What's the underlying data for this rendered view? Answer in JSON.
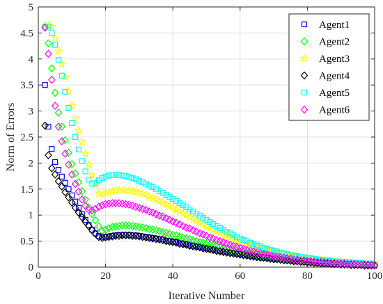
{
  "chart_data": {
    "type": "scatter",
    "title": "",
    "xlabel": "Iterative Number",
    "ylabel": "Norm of Errors",
    "xlim": [
      0,
      100
    ],
    "ylim": [
      0,
      5
    ],
    "xticks": [
      "0",
      "20",
      "40",
      "60",
      "80",
      "100"
    ],
    "yticks": [
      "0",
      "0.5",
      "1",
      "1.5",
      "2",
      "2.5",
      "3",
      "3.5",
      "4",
      "4.5",
      "5"
    ],
    "grid": true,
    "legend_position": "top-right",
    "series": [
      {
        "name": "Agent1",
        "marker": "square",
        "color": "#0000ff",
        "x": [
          2,
          3,
          4,
          5,
          6,
          7,
          8,
          9,
          10,
          11,
          12,
          13,
          14,
          15,
          16,
          17,
          18,
          19,
          20,
          21,
          22,
          23,
          24,
          25,
          26,
          27,
          28,
          29,
          30,
          31,
          32,
          33,
          34,
          35,
          36,
          37,
          38,
          39,
          40,
          41,
          42,
          43,
          44,
          45,
          46,
          47,
          48,
          49,
          50,
          51,
          52,
          53,
          54,
          55,
          56,
          57,
          58,
          59,
          60,
          61,
          62,
          63,
          64,
          65,
          66,
          67,
          68,
          69,
          70,
          71,
          72,
          73,
          74,
          75,
          76,
          77,
          78,
          79,
          80,
          81,
          82,
          83,
          84,
          85,
          86,
          87,
          88,
          89,
          90,
          91,
          92,
          93,
          94,
          95,
          96,
          97,
          98,
          99,
          100
        ],
        "y": [
          3.5,
          2.7,
          2.27,
          2.02,
          1.87,
          1.74,
          1.62,
          1.5,
          1.38,
          1.26,
          1.14,
          1.02,
          0.91,
          0.81,
          0.72,
          0.65,
          0.6,
          0.58,
          0.58,
          0.59,
          0.6,
          0.61,
          0.62,
          0.62,
          0.62,
          0.62,
          0.61,
          0.61,
          0.6,
          0.59,
          0.58,
          0.57,
          0.56,
          0.55,
          0.54,
          0.53,
          0.51,
          0.5,
          0.49,
          0.48,
          0.46,
          0.45,
          0.44,
          0.42,
          0.41,
          0.4,
          0.39,
          0.37,
          0.36,
          0.35,
          0.34,
          0.32,
          0.31,
          0.3,
          0.29,
          0.28,
          0.27,
          0.26,
          0.25,
          0.24,
          0.23,
          0.22,
          0.21,
          0.2,
          0.19,
          0.18,
          0.18,
          0.17,
          0.16,
          0.15,
          0.15,
          0.14,
          0.13,
          0.13,
          0.12,
          0.11,
          0.11,
          0.1,
          0.1,
          0.09,
          0.09,
          0.08,
          0.08,
          0.07,
          0.07,
          0.07,
          0.06,
          0.06,
          0.06,
          0.05,
          0.05,
          0.05,
          0.05,
          0.04,
          0.04,
          0.04,
          0.04,
          0.03,
          0.03
        ]
      },
      {
        "name": "Agent2",
        "marker": "diamond",
        "color": "#00ff00",
        "x": [
          2,
          3,
          4,
          5,
          6,
          7,
          8,
          9,
          10,
          11,
          12,
          13,
          14,
          15,
          16,
          17,
          18,
          19,
          20,
          21,
          22,
          23,
          24,
          25,
          26,
          27,
          28,
          29,
          30,
          31,
          32,
          33,
          34,
          35,
          36,
          37,
          38,
          39,
          40,
          41,
          42,
          43,
          44,
          45,
          46,
          47,
          48,
          49,
          50,
          51,
          52,
          53,
          54,
          55,
          56,
          57,
          58,
          59,
          60,
          61,
          62,
          63,
          64,
          65,
          66,
          67,
          68,
          69,
          70,
          71,
          72,
          73,
          74,
          75,
          76,
          77,
          78,
          79,
          80,
          81,
          82,
          83,
          84,
          85,
          86,
          87,
          88,
          89,
          90,
          91,
          92,
          93,
          94,
          95,
          96,
          97,
          98,
          99,
          100
        ],
        "y": [
          4.62,
          4.3,
          3.82,
          3.35,
          2.97,
          2.7,
          2.44,
          2.2,
          1.98,
          1.8,
          1.63,
          1.46,
          1.3,
          1.15,
          1.02,
          0.9,
          0.78,
          0.7,
          0.72,
          0.75,
          0.77,
          0.78,
          0.79,
          0.8,
          0.8,
          0.8,
          0.79,
          0.78,
          0.77,
          0.76,
          0.75,
          0.73,
          0.72,
          0.71,
          0.69,
          0.67,
          0.66,
          0.64,
          0.62,
          0.61,
          0.59,
          0.57,
          0.55,
          0.54,
          0.52,
          0.5,
          0.48,
          0.47,
          0.45,
          0.43,
          0.42,
          0.4,
          0.39,
          0.37,
          0.36,
          0.34,
          0.33,
          0.31,
          0.3,
          0.29,
          0.27,
          0.26,
          0.25,
          0.24,
          0.23,
          0.22,
          0.21,
          0.2,
          0.19,
          0.18,
          0.17,
          0.16,
          0.15,
          0.15,
          0.14,
          0.13,
          0.12,
          0.12,
          0.11,
          0.11,
          0.1,
          0.1,
          0.09,
          0.09,
          0.08,
          0.08,
          0.07,
          0.07,
          0.07,
          0.06,
          0.06,
          0.06,
          0.05,
          0.05,
          0.05,
          0.05,
          0.04,
          0.04,
          0.04
        ]
      },
      {
        "name": "Agent3",
        "marker": "star",
        "color": "#ffff00",
        "x": [
          2,
          3,
          4,
          5,
          6,
          7,
          8,
          9,
          10,
          11,
          12,
          13,
          14,
          15,
          16,
          17,
          18,
          19,
          20,
          21,
          22,
          23,
          24,
          25,
          26,
          27,
          28,
          29,
          30,
          31,
          32,
          33,
          34,
          35,
          36,
          37,
          38,
          39,
          40,
          41,
          42,
          43,
          44,
          45,
          46,
          47,
          48,
          49,
          50,
          51,
          52,
          53,
          54,
          55,
          56,
          57,
          58,
          59,
          60,
          61,
          62,
          63,
          64,
          65,
          66,
          67,
          68,
          69,
          70,
          71,
          72,
          73,
          74,
          75,
          76,
          77,
          78,
          79,
          80,
          81,
          82,
          83,
          84,
          85,
          86,
          87,
          88,
          89,
          90,
          91,
          92,
          93,
          94,
          95,
          96,
          97,
          98,
          99,
          100
        ],
        "y": [
          4.65,
          4.65,
          4.62,
          4.4,
          4.15,
          3.9,
          3.65,
          3.38,
          3.1,
          2.85,
          2.62,
          2.4,
          2.18,
          1.97,
          1.77,
          1.58,
          1.42,
          1.4,
          1.42,
          1.44,
          1.46,
          1.47,
          1.48,
          1.48,
          1.48,
          1.47,
          1.46,
          1.45,
          1.43,
          1.41,
          1.39,
          1.36,
          1.33,
          1.3,
          1.27,
          1.24,
          1.21,
          1.17,
          1.14,
          1.1,
          1.07,
          1.03,
          1.0,
          0.96,
          0.92,
          0.89,
          0.85,
          0.82,
          0.78,
          0.75,
          0.72,
          0.69,
          0.66,
          0.63,
          0.6,
          0.57,
          0.54,
          0.51,
          0.49,
          0.46,
          0.44,
          0.42,
          0.4,
          0.38,
          0.36,
          0.34,
          0.32,
          0.3,
          0.29,
          0.27,
          0.26,
          0.24,
          0.23,
          0.22,
          0.21,
          0.2,
          0.19,
          0.18,
          0.17,
          0.16,
          0.15,
          0.14,
          0.14,
          0.13,
          0.12,
          0.12,
          0.11,
          0.1,
          0.1,
          0.09,
          0.09,
          0.09,
          0.08,
          0.08,
          0.07,
          0.07,
          0.07,
          0.06,
          0.06
        ]
      },
      {
        "name": "Agent4",
        "marker": "diamond",
        "color": "#000000",
        "x": [
          2,
          3,
          4,
          5,
          6,
          7,
          8,
          9,
          10,
          11,
          12,
          13,
          14,
          15,
          16,
          17,
          18,
          19,
          20,
          21,
          22,
          23,
          24,
          25,
          26,
          27,
          28,
          29,
          30,
          31,
          32,
          33,
          34,
          35,
          36,
          37,
          38,
          39,
          40,
          41,
          42,
          43,
          44,
          45,
          46,
          47,
          48,
          49,
          50,
          51,
          52,
          53,
          54,
          55,
          56,
          57,
          58,
          59,
          60,
          61,
          62,
          63,
          64,
          65,
          66,
          67,
          68,
          69,
          70,
          71,
          72,
          73,
          74,
          75,
          76,
          77,
          78,
          79,
          80,
          81,
          82,
          83,
          84,
          85,
          86,
          87,
          88,
          89,
          90,
          91,
          92,
          93,
          94,
          95,
          96,
          97,
          98,
          99,
          100
        ],
        "y": [
          2.72,
          2.15,
          1.9,
          1.78,
          1.65,
          1.55,
          1.44,
          1.34,
          1.24,
          1.14,
          1.05,
          0.96,
          0.87,
          0.79,
          0.71,
          0.64,
          0.58,
          0.56,
          0.57,
          0.58,
          0.59,
          0.6,
          0.6,
          0.61,
          0.61,
          0.61,
          0.6,
          0.6,
          0.59,
          0.58,
          0.57,
          0.56,
          0.55,
          0.54,
          0.53,
          0.52,
          0.5,
          0.49,
          0.48,
          0.47,
          0.45,
          0.44,
          0.43,
          0.41,
          0.4,
          0.39,
          0.38,
          0.36,
          0.35,
          0.34,
          0.33,
          0.31,
          0.3,
          0.29,
          0.28,
          0.27,
          0.26,
          0.25,
          0.24,
          0.23,
          0.22,
          0.21,
          0.2,
          0.19,
          0.18,
          0.18,
          0.17,
          0.16,
          0.15,
          0.15,
          0.14,
          0.13,
          0.13,
          0.12,
          0.11,
          0.11,
          0.1,
          0.1,
          0.09,
          0.09,
          0.08,
          0.08,
          0.07,
          0.07,
          0.07,
          0.06,
          0.06,
          0.06,
          0.05,
          0.05,
          0.05,
          0.04,
          0.04,
          0.04,
          0.04,
          0.03,
          0.03,
          0.03,
          0.03
        ]
      },
      {
        "name": "Agent5",
        "marker": "square",
        "color": "#00ffff",
        "x": [
          2,
          3,
          4,
          5,
          6,
          7,
          8,
          9,
          10,
          11,
          12,
          13,
          14,
          15,
          16,
          17,
          18,
          19,
          20,
          21,
          22,
          23,
          24,
          25,
          26,
          27,
          28,
          29,
          30,
          31,
          32,
          33,
          34,
          35,
          36,
          37,
          38,
          39,
          40,
          41,
          42,
          43,
          44,
          45,
          46,
          47,
          48,
          49,
          50,
          51,
          52,
          53,
          54,
          55,
          56,
          57,
          58,
          59,
          60,
          61,
          62,
          63,
          64,
          65,
          66,
          67,
          68,
          69,
          70,
          71,
          72,
          73,
          74,
          75,
          76,
          77,
          78,
          79,
          80,
          81,
          82,
          83,
          84,
          85,
          86,
          87,
          88,
          89,
          90,
          91,
          92,
          93,
          94,
          95,
          96,
          97,
          98,
          99,
          100
        ],
        "y": [
          4.62,
          4.62,
          4.5,
          4.27,
          3.98,
          3.68,
          3.37,
          3.06,
          2.77,
          2.5,
          2.26,
          2.04,
          1.84,
          1.68,
          1.6,
          1.62,
          1.67,
          1.71,
          1.74,
          1.76,
          1.77,
          1.77,
          1.77,
          1.76,
          1.75,
          1.73,
          1.71,
          1.69,
          1.66,
          1.63,
          1.6,
          1.57,
          1.54,
          1.5,
          1.46,
          1.43,
          1.39,
          1.35,
          1.31,
          1.27,
          1.23,
          1.19,
          1.15,
          1.11,
          1.07,
          1.03,
          0.99,
          0.95,
          0.91,
          0.87,
          0.83,
          0.79,
          0.75,
          0.72,
          0.68,
          0.65,
          0.62,
          0.58,
          0.55,
          0.52,
          0.5,
          0.47,
          0.44,
          0.42,
          0.4,
          0.37,
          0.35,
          0.33,
          0.31,
          0.3,
          0.28,
          0.26,
          0.25,
          0.23,
          0.22,
          0.21,
          0.2,
          0.19,
          0.18,
          0.17,
          0.16,
          0.15,
          0.14,
          0.13,
          0.13,
          0.12,
          0.11,
          0.11,
          0.1,
          0.1,
          0.09,
          0.09,
          0.08,
          0.08,
          0.08,
          0.07,
          0.07,
          0.07,
          0.06
        ]
      },
      {
        "name": "Agent6",
        "marker": "diamond",
        "color": "#ff00ff",
        "x": [
          2,
          3,
          4,
          5,
          6,
          7,
          8,
          9,
          10,
          11,
          12,
          13,
          14,
          15,
          16,
          17,
          18,
          19,
          20,
          21,
          22,
          23,
          24,
          25,
          26,
          27,
          28,
          29,
          30,
          31,
          32,
          33,
          34,
          35,
          36,
          37,
          38,
          39,
          40,
          41,
          42,
          43,
          44,
          45,
          46,
          47,
          48,
          49,
          50,
          51,
          52,
          53,
          54,
          55,
          56,
          57,
          58,
          59,
          60,
          61,
          62,
          63,
          64,
          65,
          66,
          67,
          68,
          69,
          70,
          71,
          72,
          73,
          74,
          75,
          76,
          77,
          78,
          79,
          80,
          81,
          82,
          83,
          84,
          85,
          86,
          87,
          88,
          89,
          90,
          91,
          92,
          93,
          94,
          95,
          96,
          97,
          98,
          99,
          100
        ],
        "y": [
          4.6,
          4.1,
          3.6,
          3.1,
          2.7,
          2.42,
          2.18,
          1.97,
          1.78,
          1.6,
          1.45,
          1.3,
          1.18,
          1.1,
          1.09,
          1.12,
          1.16,
          1.19,
          1.21,
          1.22,
          1.23,
          1.23,
          1.23,
          1.22,
          1.21,
          1.2,
          1.18,
          1.16,
          1.14,
          1.12,
          1.1,
          1.07,
          1.05,
          1.02,
          0.99,
          0.97,
          0.94,
          0.91,
          0.88,
          0.85,
          0.82,
          0.79,
          0.76,
          0.74,
          0.71,
          0.68,
          0.65,
          0.63,
          0.6,
          0.57,
          0.55,
          0.52,
          0.5,
          0.48,
          0.45,
          0.43,
          0.41,
          0.39,
          0.37,
          0.35,
          0.33,
          0.31,
          0.3,
          0.28,
          0.27,
          0.25,
          0.24,
          0.22,
          0.21,
          0.2,
          0.19,
          0.18,
          0.17,
          0.16,
          0.15,
          0.14,
          0.13,
          0.13,
          0.12,
          0.11,
          0.11,
          0.1,
          0.1,
          0.09,
          0.09,
          0.08,
          0.08,
          0.07,
          0.07,
          0.07,
          0.06,
          0.06,
          0.06,
          0.05,
          0.05,
          0.05,
          0.05,
          0.04,
          0.04
        ]
      }
    ]
  }
}
